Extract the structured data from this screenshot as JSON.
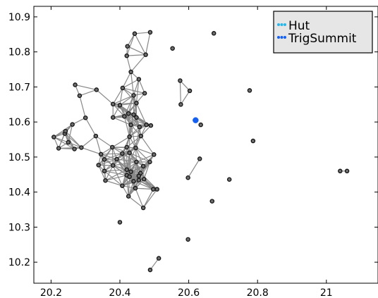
{
  "chart_data": {
    "type": "scatter",
    "xlim": [
      20.15,
      21.15
    ],
    "ylim": [
      10.14,
      10.93
    ],
    "x_ticks": [
      20.2,
      20.4,
      20.6,
      20.8,
      21
    ],
    "x_tick_labels": [
      "20.2",
      "20.4",
      "20.6",
      "20.8",
      "21"
    ],
    "y_ticks": [
      10.2,
      10.3,
      10.4,
      10.5,
      10.6,
      10.7,
      10.8,
      10.9
    ],
    "y_tick_labels": [
      "10.2",
      "10.3",
      "10.4",
      "10.5",
      "10.6",
      "10.7",
      "10.8",
      "10.9"
    ],
    "grid": false,
    "legend_position": "top-right",
    "series": [
      {
        "name": "Hut",
        "color": "#29b6e8",
        "points": [
          [
            20.443,
            10.852
          ],
          [
            20.488,
            10.856
          ],
          [
            20.422,
            10.816
          ],
          [
            20.475,
            10.792
          ],
          [
            20.42,
            10.789
          ],
          [
            20.432,
            10.743
          ],
          [
            20.455,
            10.722
          ],
          [
            20.408,
            10.697
          ],
          [
            20.472,
            10.682
          ],
          [
            20.44,
            10.676
          ],
          [
            20.27,
            10.706
          ],
          [
            20.332,
            10.692
          ],
          [
            20.283,
            10.675
          ],
          [
            20.38,
            10.651
          ],
          [
            20.4,
            10.648
          ],
          [
            20.448,
            10.654
          ],
          [
            20.425,
            10.624
          ],
          [
            20.44,
            10.621
          ],
          [
            20.38,
            10.613
          ],
          [
            20.413,
            10.616
          ],
          [
            20.448,
            10.613
          ],
          [
            20.3,
            10.612
          ],
          [
            20.262,
            10.593
          ],
          [
            20.477,
            10.592
          ],
          [
            20.432,
            10.592
          ],
          [
            20.457,
            10.586
          ],
          [
            20.49,
            10.59
          ],
          [
            20.208,
            10.557
          ],
          [
            20.24,
            10.567
          ],
          [
            20.242,
            10.574
          ],
          [
            20.25,
            10.542
          ],
          [
            20.33,
            10.56
          ],
          [
            20.428,
            10.558
          ],
          [
            20.461,
            10.56
          ],
          [
            20.222,
            10.525
          ],
          [
            20.268,
            10.523
          ],
          [
            20.288,
            10.527
          ],
          [
            20.378,
            10.528
          ],
          [
            20.42,
            10.528
          ],
          [
            20.446,
            10.526
          ],
          [
            20.345,
            10.508
          ],
          [
            20.407,
            10.51
          ],
          [
            20.428,
            10.512
          ],
          [
            20.499,
            10.507
          ],
          [
            20.355,
            10.493
          ],
          [
            20.391,
            10.494
          ],
          [
            20.448,
            10.486
          ],
          [
            20.487,
            10.486
          ],
          [
            20.338,
            10.477
          ],
          [
            20.38,
            10.476
          ],
          [
            20.468,
            10.474
          ],
          [
            20.355,
            10.46
          ],
          [
            20.42,
            10.464
          ],
          [
            20.432,
            10.458
          ],
          [
            20.46,
            10.454
          ],
          [
            20.42,
            10.448
          ],
          [
            20.428,
            10.444
          ],
          [
            20.455,
            10.446
          ],
          [
            20.47,
            10.437
          ],
          [
            20.358,
            10.433
          ],
          [
            20.455,
            10.434
          ],
          [
            20.44,
            10.431
          ],
          [
            20.407,
            10.418
          ],
          [
            20.445,
            10.411
          ],
          [
            20.497,
            10.408
          ],
          [
            20.508,
            10.408
          ],
          [
            20.425,
            10.388
          ],
          [
            20.468,
            10.355
          ],
          [
            20.553,
            10.81
          ],
          [
            20.673,
            10.853
          ],
          [
            20.575,
            10.718
          ],
          [
            20.603,
            10.689
          ],
          [
            20.577,
            10.65
          ],
          [
            20.635,
            10.592
          ],
          [
            20.777,
            10.69
          ],
          [
            20.787,
            10.546
          ],
          [
            20.632,
            10.495
          ],
          [
            20.598,
            10.441
          ],
          [
            20.718,
            10.436
          ],
          [
            20.668,
            10.374
          ],
          [
            21.04,
            10.46
          ],
          [
            21.06,
            10.46
          ],
          [
            20.4,
            10.314
          ],
          [
            20.598,
            10.265
          ],
          [
            20.488,
            10.178
          ],
          [
            20.513,
            10.211
          ]
        ]
      },
      {
        "name": "TrigSummit",
        "color": "#1560f0",
        "points": [
          [
            20.62,
            10.605
          ]
        ]
      }
    ]
  }
}
